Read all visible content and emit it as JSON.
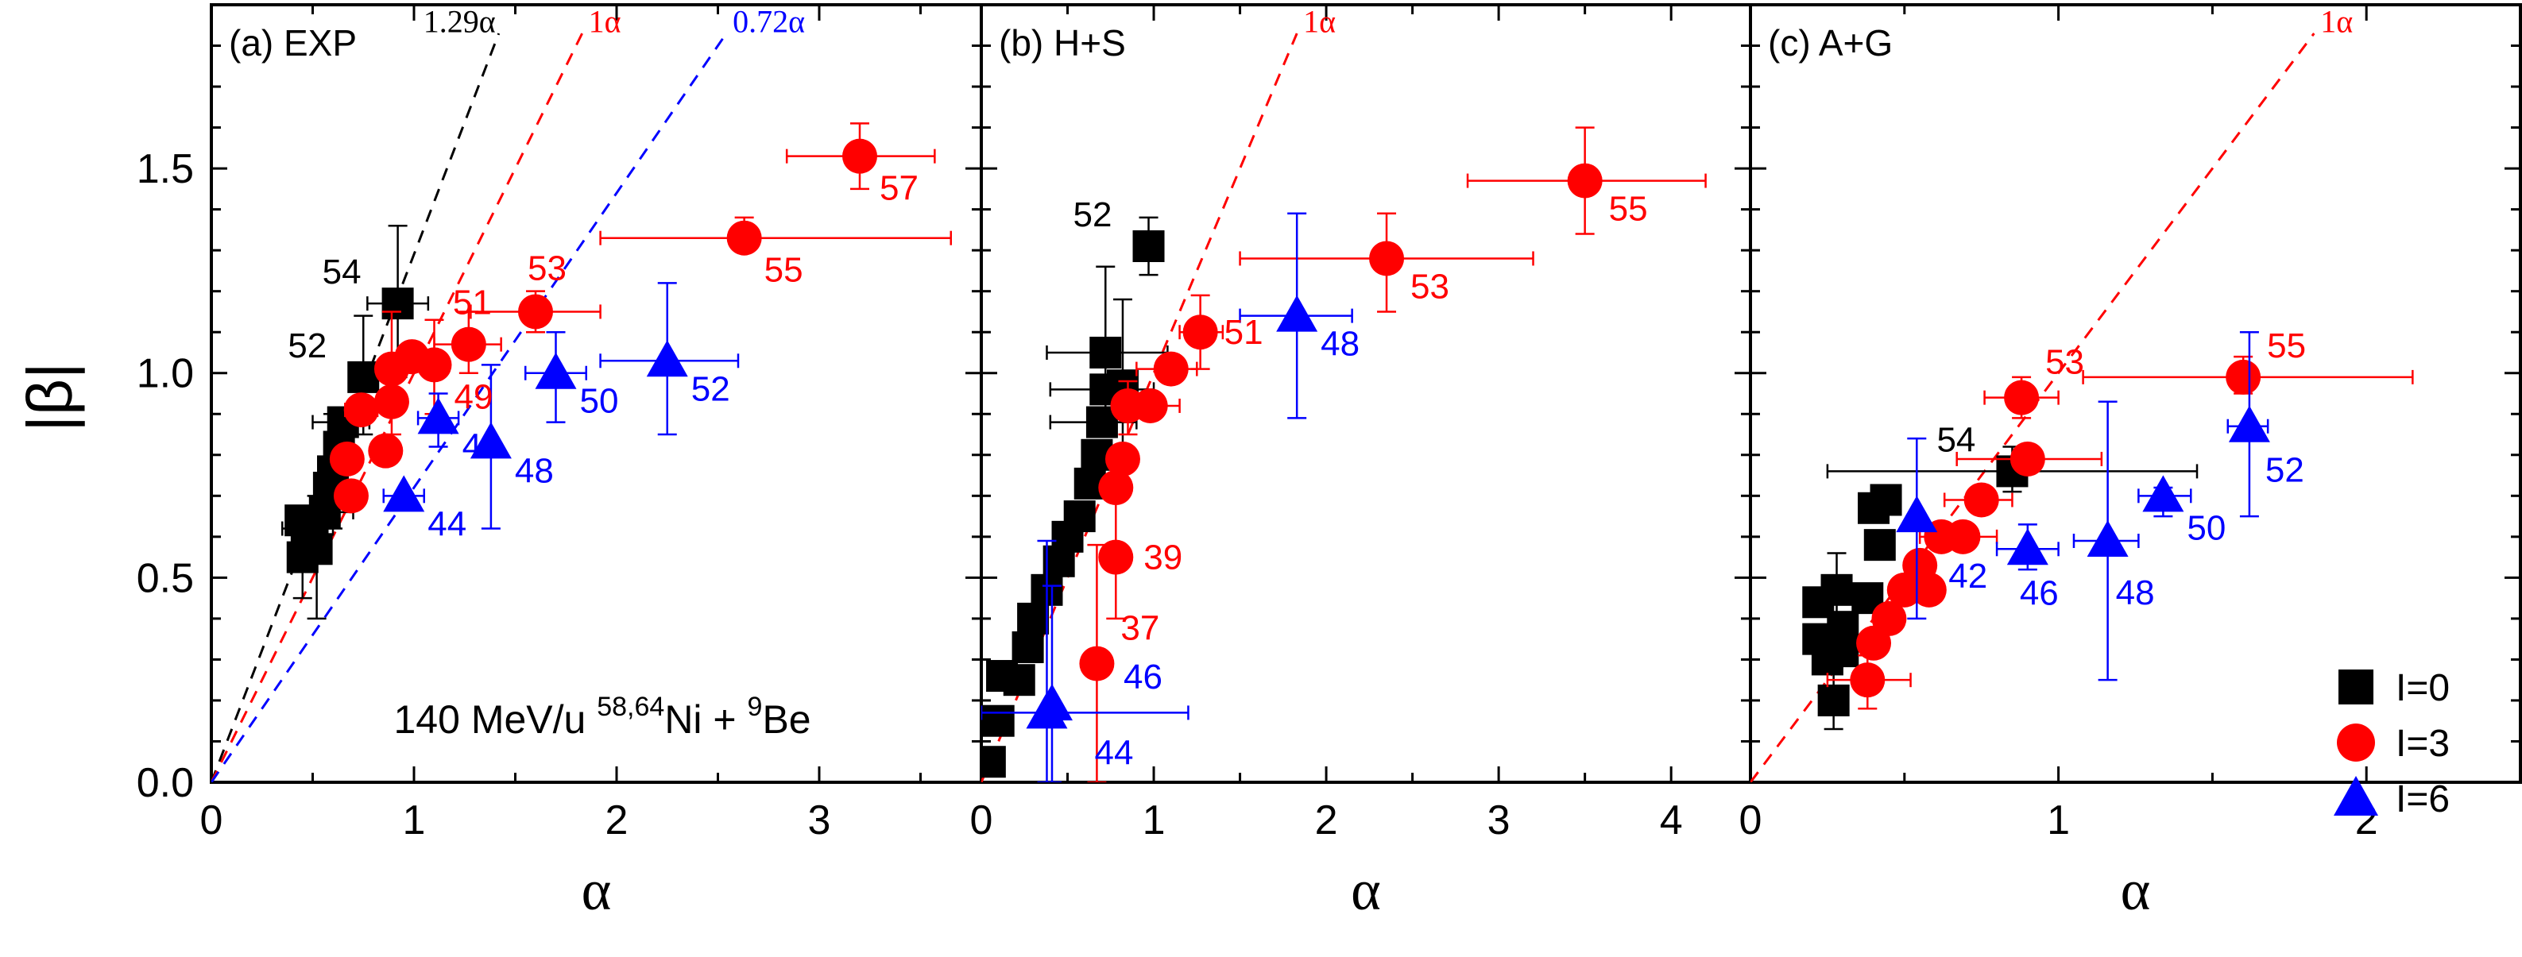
{
  "chart_data": {
    "type": "scatter",
    "ylabel": "|β|",
    "colors": {
      "I0": "#000000",
      "I3": "#ff0000",
      "I6": "#0000ff"
    },
    "legend": {
      "placement": "bottom-right",
      "entries": [
        {
          "key": "I0",
          "label": "I=0",
          "marker": "square"
        },
        {
          "key": "I3",
          "label": "I=3",
          "marker": "circle"
        },
        {
          "key": "I6",
          "label": "I=6",
          "marker": "triangle"
        }
      ]
    },
    "panels": [
      {
        "title": "(a) EXP",
        "xlabel": "α",
        "xlim": [
          0,
          3.8
        ],
        "ylim": [
          0,
          1.9
        ],
        "xticks": [
          "0",
          "1",
          "2",
          "3"
        ],
        "yticks": [
          "0.0",
          "0.5",
          "1.0",
          "1.5"
        ],
        "annotation": {
          "prefix": "140 MeV/u ",
          "sup1": "58,64",
          "mid": "Ni + ",
          "sup2": "9",
          "suffix": "Be"
        },
        "lines": [
          {
            "slope": 1.29,
            "label": "1.29α",
            "color": "#000000"
          },
          {
            "slope": 1.0,
            "label": "1α",
            "color": "#ff0000"
          },
          {
            "slope": 0.72,
            "label": "0.72α",
            "color": "#0000ff"
          }
        ],
        "series": {
          "I0": [
            {
              "x": 0.45,
              "y": 0.55,
              "yerr": [
                0.45,
                0.62
              ]
            },
            {
              "x": 0.47,
              "y": 0.6
            },
            {
              "x": 0.5,
              "y": 0.62,
              "xerr": [
                0.35,
                0.6
              ]
            },
            {
              "x": 0.52,
              "y": 0.57,
              "yerr": [
                0.4,
                0.7
              ]
            },
            {
              "x": 0.44,
              "y": 0.64
            },
            {
              "x": 0.56,
              "y": 0.66,
              "xerr": [
                0.45,
                0.7
              ]
            },
            {
              "x": 0.58,
              "y": 0.72
            },
            {
              "x": 0.6,
              "y": 0.76,
              "yerr": [
                0.62,
                0.9
              ]
            },
            {
              "x": 0.63,
              "y": 0.82
            },
            {
              "x": 0.65,
              "y": 0.88,
              "xerr": [
                0.5,
                0.78
              ]
            },
            {
              "x": 0.75,
              "y": 0.99,
              "label": "52",
              "yerr": [
                0.85,
                1.14
              ]
            },
            {
              "x": 0.92,
              "y": 1.17,
              "label": "54",
              "xerr": [
                0.77,
                1.07
              ],
              "yerr": [
                0.99,
                1.36
              ]
            }
          ],
          "I3": [
            {
              "x": 0.69,
              "y": 0.7
            },
            {
              "x": 0.67,
              "y": 0.79
            },
            {
              "x": 0.86,
              "y": 0.81
            },
            {
              "x": 0.74,
              "y": 0.91,
              "xerr": [
                0.66,
                0.82
              ]
            },
            {
              "x": 0.89,
              "y": 0.93
            },
            {
              "x": 0.89,
              "y": 1.01,
              "yerr": [
                0.85,
                1.15
              ]
            },
            {
              "x": 0.99,
              "y": 1.04
            },
            {
              "x": 1.1,
              "y": 1.02,
              "label": "49",
              "yerr": [
                0.9,
                1.13
              ]
            },
            {
              "x": 1.27,
              "y": 1.07,
              "label": "51",
              "xerr": [
                1.1,
                1.43
              ],
              "yerr": [
                1.0,
                1.15
              ]
            },
            {
              "x": 1.6,
              "y": 1.15,
              "label": "53",
              "xerr": [
                1.28,
                1.92
              ],
              "yerr": [
                1.1,
                1.2
              ]
            },
            {
              "x": 2.63,
              "y": 1.33,
              "label": "55",
              "xerr": [
                1.92,
                3.65
              ],
              "yerr": [
                1.3,
                1.38
              ]
            },
            {
              "x": 3.2,
              "y": 1.53,
              "label": "57",
              "xerr": [
                2.84,
                3.57
              ],
              "yerr": [
                1.45,
                1.61
              ]
            }
          ],
          "I6": [
            {
              "x": 0.95,
              "y": 0.7,
              "label": "44",
              "xerr": [
                0.85,
                1.05
              ]
            },
            {
              "x": 1.12,
              "y": 0.89,
              "label": "46",
              "xerr": [
                1.02,
                1.22
              ],
              "yerr": [
                0.82,
                0.95
              ]
            },
            {
              "x": 1.38,
              "y": 0.83,
              "label": "48",
              "yerr": [
                0.62,
                1.02
              ]
            },
            {
              "x": 1.7,
              "y": 1.0,
              "label": "50",
              "yerr": [
                0.88,
                1.1
              ],
              "xerr": [
                1.55,
                1.85
              ]
            },
            {
              "x": 2.25,
              "y": 1.03,
              "label": "52",
              "xerr": [
                1.92,
                2.6
              ],
              "yerr": [
                0.85,
                1.22
              ]
            }
          ]
        }
      },
      {
        "title": "(b) H+S",
        "xlabel": "α",
        "xlim": [
          0,
          4.46
        ],
        "ylim": [
          0,
          1.9
        ],
        "xticks": [
          "0",
          "1",
          "2",
          "3",
          "4"
        ],
        "lines": [
          {
            "slope": 1.0,
            "label": "1α",
            "color": "#ff0000"
          }
        ],
        "series": {
          "I0": [
            {
              "x": 0.05,
              "y": 0.05
            },
            {
              "x": 0.1,
              "y": 0.15
            },
            {
              "x": 0.12,
              "y": 0.26
            },
            {
              "x": 0.22,
              "y": 0.25
            },
            {
              "x": 0.27,
              "y": 0.33
            },
            {
              "x": 0.3,
              "y": 0.4
            },
            {
              "x": 0.38,
              "y": 0.47
            },
            {
              "x": 0.45,
              "y": 0.54
            },
            {
              "x": 0.5,
              "y": 0.6
            },
            {
              "x": 0.57,
              "y": 0.65
            },
            {
              "x": 0.63,
              "y": 0.73
            },
            {
              "x": 0.67,
              "y": 0.8
            },
            {
              "x": 0.7,
              "y": 0.88,
              "xerr": [
                0.4,
                0.9
              ]
            },
            {
              "x": 0.72,
              "y": 0.96,
              "xerr": [
                0.4,
                1.0
              ]
            },
            {
              "x": 0.82,
              "y": 0.97,
              "yerr": [
                0.78,
                1.18
              ]
            },
            {
              "x": 0.72,
              "y": 1.05,
              "xerr": [
                0.38,
                1.08
              ],
              "yerr": [
                0.9,
                1.26
              ]
            },
            {
              "x": 0.97,
              "y": 1.31,
              "label": "52",
              "yerr": [
                1.24,
                1.38
              ]
            }
          ],
          "I3": [
            {
              "x": 0.67,
              "y": 0.29,
              "label": "37",
              "yerr": [
                0.0,
                0.58
              ]
            },
            {
              "x": 0.78,
              "y": 0.55,
              "label": "39",
              "yerr": [
                0.4,
                0.72
              ]
            },
            {
              "x": 0.78,
              "y": 0.72
            },
            {
              "x": 0.82,
              "y": 0.79
            },
            {
              "x": 0.85,
              "y": 0.92,
              "yerr": [
                0.85,
                0.98
              ]
            },
            {
              "x": 0.98,
              "y": 0.92,
              "xerr": [
                0.8,
                1.15
              ]
            },
            {
              "x": 1.1,
              "y": 1.01,
              "xerr": [
                0.9,
                1.25
              ]
            },
            {
              "x": 1.27,
              "y": 1.1,
              "label": "51",
              "xerr": [
                1.15,
                1.4
              ],
              "yerr": [
                1.01,
                1.19
              ]
            },
            {
              "x": 2.35,
              "y": 1.28,
              "label": "53",
              "xerr": [
                1.5,
                3.2
              ],
              "yerr": [
                1.15,
                1.39
              ]
            },
            {
              "x": 3.5,
              "y": 1.47,
              "label": "55",
              "xerr": [
                2.82,
                4.2
              ],
              "yerr": [
                1.34,
                1.6
              ]
            }
          ],
          "I6": [
            {
              "x": 0.38,
              "y": 0.17,
              "label": "44",
              "xerr": [
                0.0,
                1.2
              ],
              "yerr": [
                0.0,
                0.59
              ]
            },
            {
              "x": 0.41,
              "y": 0.19,
              "label": "46",
              "yerr": [
                0.0,
                0.48
              ]
            },
            {
              "x": 1.83,
              "y": 1.14,
              "label": "48",
              "xerr": [
                1.5,
                2.15
              ],
              "yerr": [
                0.89,
                1.39
              ]
            }
          ]
        }
      },
      {
        "title": "(c) A+G",
        "xlabel": "α",
        "xlim": [
          0,
          2.5
        ],
        "ylim": [
          0,
          1.9
        ],
        "xticks": [
          "0",
          "1",
          "2"
        ],
        "lines": [
          {
            "slope": 1.0,
            "label": "1α",
            "color": "#ff0000"
          }
        ],
        "series": {
          "I0": [
            {
              "x": 0.27,
              "y": 0.2,
              "yerr": [
                0.13,
                0.28
              ]
            },
            {
              "x": 0.25,
              "y": 0.3
            },
            {
              "x": 0.22,
              "y": 0.35
            },
            {
              "x": 0.3,
              "y": 0.38
            },
            {
              "x": 0.22,
              "y": 0.44
            },
            {
              "x": 0.28,
              "y": 0.47,
              "yerr": [
                0.4,
                0.56
              ]
            },
            {
              "x": 0.38,
              "y": 0.45
            },
            {
              "x": 0.3,
              "y": 0.32
            },
            {
              "x": 0.42,
              "y": 0.58
            },
            {
              "x": 0.4,
              "y": 0.67
            },
            {
              "x": 0.44,
              "y": 0.69
            },
            {
              "x": 0.85,
              "y": 0.76,
              "label": "54",
              "xerr": [
                0.25,
                1.45
              ],
              "yerr": [
                0.71,
                0.82
              ]
            }
          ],
          "I3": [
            {
              "x": 0.38,
              "y": 0.25,
              "xerr": [
                0.25,
                0.52
              ],
              "yerr": [
                0.18,
                0.31
              ]
            },
            {
              "x": 0.4,
              "y": 0.34
            },
            {
              "x": 0.45,
              "y": 0.4
            },
            {
              "x": 0.5,
              "y": 0.47
            },
            {
              "x": 0.55,
              "y": 0.53
            },
            {
              "x": 0.58,
              "y": 0.47
            },
            {
              "x": 0.62,
              "y": 0.6
            },
            {
              "x": 0.69,
              "y": 0.6,
              "xerr": [
                0.55,
                0.8
              ]
            },
            {
              "x": 0.75,
              "y": 0.69,
              "xerr": [
                0.63,
                0.85
              ]
            },
            {
              "x": 0.9,
              "y": 0.79,
              "xerr": [
                0.67,
                1.14
              ]
            },
            {
              "x": 0.88,
              "y": 0.94,
              "label": "53",
              "xerr": [
                0.76,
                1.0
              ],
              "yerr": [
                0.89,
                0.99
              ]
            },
            {
              "x": 1.6,
              "y": 0.99,
              "label": "55",
              "xerr": [
                1.08,
                2.15
              ],
              "yerr": [
                0.95,
                1.04
              ]
            }
          ],
          "I6": [
            {
              "x": 0.54,
              "y": 0.65,
              "label": "42",
              "yerr": [
                0.4,
                0.84
              ]
            },
            {
              "x": 0.9,
              "y": 0.57,
              "label": "46",
              "xerr": [
                0.8,
                1.0
              ],
              "yerr": [
                0.52,
                0.63
              ]
            },
            {
              "x": 1.16,
              "y": 0.59,
              "label": "48",
              "xerr": [
                1.05,
                1.26
              ],
              "yerr": [
                0.25,
                0.93
              ]
            },
            {
              "x": 1.34,
              "y": 0.7,
              "label": "50",
              "xerr": [
                1.26,
                1.43
              ],
              "yerr": [
                0.65,
                0.72
              ]
            },
            {
              "x": 1.62,
              "y": 0.87,
              "label": "52",
              "xerr": [
                1.55,
                1.68
              ],
              "yerr": [
                0.65,
                1.1
              ]
            }
          ]
        }
      }
    ]
  }
}
